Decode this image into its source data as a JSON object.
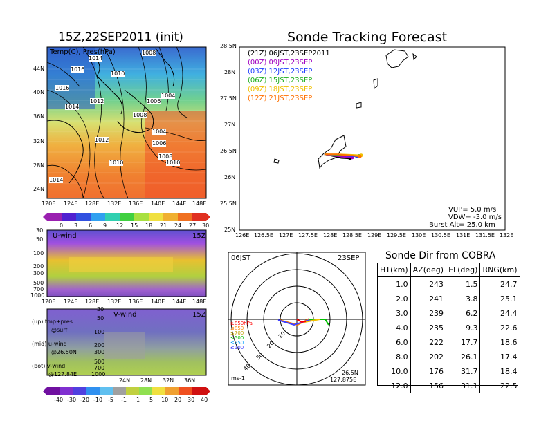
{
  "left": {
    "title": "15Z,22SEP2011 (init)",
    "map_label": "Temp(C), Pres(hPa)",
    "lat_ticks": [
      "44N",
      "40N",
      "36N",
      "32N",
      "28N",
      "24N"
    ],
    "lon_ticks": [
      "120E",
      "124E",
      "128E",
      "132E",
      "136E",
      "140E",
      "144E",
      "148E"
    ],
    "isobar_labels": [
      "1014",
      "1008",
      "1016",
      "1010",
      "1016",
      "1012",
      "1006",
      "1004",
      "1014",
      "1008",
      "1004",
      "1012",
      "1006",
      "1010",
      "1008",
      "1010",
      "1014"
    ],
    "temp_colorbar": [
      "0",
      "3",
      "6",
      "9",
      "12",
      "15",
      "18",
      "21",
      "24",
      "27",
      "30"
    ],
    "uwind_label": "U-wind",
    "uwind_time": "15Z",
    "p_ticks": [
      "30",
      "50",
      "100",
      "200",
      "300",
      "500",
      "700",
      "1000"
    ],
    "vwind_label": "V-wind",
    "vwind_time": "15Z",
    "vwind_lat_ticks": [
      "24N",
      "28N",
      "32N",
      "36N"
    ],
    "wind_colorbar": [
      "-40",
      "-30",
      "-20",
      "-10",
      "-5",
      "-1",
      "1",
      "5",
      "10",
      "20",
      "30",
      "40"
    ],
    "legend_lines": [
      "(up) tmp+pres",
      "@surf",
      "(mid) u-wind",
      "@26.50N",
      "(bot) v-wind",
      "@127.84E"
    ]
  },
  "tracking": {
    "title": "Sonde Tracking Forecast",
    "lat_ticks": [
      "28.5N",
      "28N",
      "27.5N",
      "27N",
      "26.5N",
      "26N",
      "25.5N",
      "25N"
    ],
    "lon_ticks": [
      "126E",
      "126.5E",
      "127E",
      "127.5E",
      "128E",
      "128.5E",
      "129E",
      "129.5E",
      "130E",
      "130.5E",
      "131E",
      "131.5E",
      "132E"
    ],
    "legend": [
      {
        "text": "(21Z)  06JST,23SEP2011",
        "color": "#000000"
      },
      {
        "text": "(00Z)  09JST,23SEP",
        "color": "#a000c0"
      },
      {
        "text": "(03Z)  12JST,23SEP",
        "color": "#2040ff"
      },
      {
        "text": "(06Z)  15JST,23SEP",
        "color": "#20b020"
      },
      {
        "text": "(09Z)  18JST,23SEP",
        "color": "#f0c000"
      },
      {
        "text": "(12Z)  21JST,23SEP",
        "color": "#ff7000"
      }
    ],
    "vup": "VUP=  5.0  m/s",
    "vdw": "VDW=  -3.0  m/s",
    "burst": "Burst Alt=  25.0  km"
  },
  "polar": {
    "time_left": "06JST",
    "date_right": "23SEP",
    "range_labels": [
      "10",
      "20",
      "30",
      "40"
    ],
    "level_labels": [
      {
        "text": "≥850hPa",
        "color": "#ff0000"
      },
      {
        "text": "≤850",
        "color": "#ff8000"
      },
      {
        "text": "≤700",
        "color": "#c0a000"
      },
      {
        "text": "≤500",
        "color": "#00c000"
      },
      {
        "text": "≤250",
        "color": "#00a0ff"
      },
      {
        "text": "≤100",
        "color": "#4040ff"
      }
    ],
    "unit": "ms-1",
    "pos_lat": "26.5N",
    "pos_lon": "127.875E"
  },
  "table": {
    "title": "Sonde Dir from COBRA",
    "headers": [
      "HT(km)",
      "AZ(deg)",
      "EL(deg)",
      "RNG(km)"
    ],
    "rows": [
      [
        "1.0",
        "243",
        "1.5",
        "24.7"
      ],
      [
        "2.0",
        "241",
        "3.8",
        "25.1"
      ],
      [
        "3.0",
        "239",
        "6.2",
        "24.4"
      ],
      [
        "4.0",
        "235",
        "9.3",
        "22.6"
      ],
      [
        "6.0",
        "222",
        "17.7",
        "18.6"
      ],
      [
        "8.0",
        "202",
        "26.1",
        "17.4"
      ],
      [
        "10.0",
        "176",
        "31.7",
        "18.4"
      ],
      [
        "12.0",
        "156",
        "31.1",
        "22.5"
      ]
    ]
  },
  "chart_data": [
    {
      "type": "heatmap",
      "title": "15Z,22SEP2011 (init)",
      "label": "Temp(C), Pres(hPa)",
      "colorbar": [
        0,
        3,
        6,
        9,
        12,
        15,
        18,
        21,
        24,
        27,
        30
      ]
    },
    {
      "type": "line",
      "title": "Sonde Tracking Forecast",
      "xlim": [
        126,
        132
      ],
      "ylim": [
        25,
        28.5
      ],
      "series": [
        {
          "name": "(21Z) 06JST,23SEP2011",
          "x": [
            127.92,
            128.1,
            128.3,
            128.5
          ],
          "y": [
            26.45,
            26.42,
            26.38,
            26.37
          ]
        },
        {
          "name": "(00Z) 09JST,23SEP",
          "x": [
            127.92,
            128.15,
            128.4,
            128.55
          ],
          "y": [
            26.45,
            26.42,
            26.4,
            26.39
          ]
        },
        {
          "name": "(03Z) 12JST,23SEP",
          "x": [
            127.92,
            128.2,
            128.45,
            128.65
          ],
          "y": [
            26.45,
            26.44,
            26.42,
            26.41
          ]
        },
        {
          "name": "(06Z) 15JST,23SEP",
          "x": [
            127.92,
            128.25,
            128.5,
            128.7
          ],
          "y": [
            26.45,
            26.44,
            26.43,
            26.42
          ]
        },
        {
          "name": "(09Z) 18JST,23SEP",
          "x": [
            127.92,
            128.25,
            128.55,
            128.75
          ],
          "y": [
            26.45,
            26.45,
            26.44,
            26.43
          ]
        },
        {
          "name": "(12Z) 21JST,23SEP",
          "x": [
            127.92,
            128.2,
            128.5,
            128.72
          ],
          "y": [
            26.45,
            26.45,
            26.43,
            26.41
          ]
        }
      ]
    },
    {
      "type": "table",
      "title": "Sonde Dir from COBRA",
      "columns": [
        "HT(km)",
        "AZ(deg)",
        "EL(deg)",
        "RNG(km)"
      ],
      "rows": [
        [
          1.0,
          243,
          1.5,
          24.7
        ],
        [
          2.0,
          241,
          3.8,
          25.1
        ],
        [
          3.0,
          239,
          6.2,
          24.4
        ],
        [
          4.0,
          235,
          9.3,
          22.6
        ],
        [
          6.0,
          222,
          17.7,
          18.6
        ],
        [
          8.0,
          202,
          26.1,
          17.4
        ],
        [
          10.0,
          176,
          31.7,
          18.4
        ],
        [
          12.0,
          156,
          31.1,
          22.5
        ]
      ]
    }
  ]
}
